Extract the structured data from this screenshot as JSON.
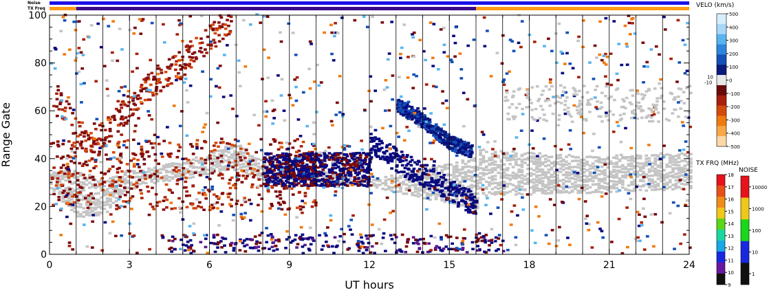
{
  "chart_data": {
    "type": "heatmap",
    "title": "",
    "xlabel": "UT hours",
    "ylabel": "Range Gate",
    "xlim": [
      0,
      24
    ],
    "ylim": [
      0,
      100
    ],
    "x_ticks": [
      "0",
      "3",
      "6",
      "9",
      "12",
      "15",
      "18",
      "21",
      "24"
    ],
    "y_ticks": [
      "0",
      "20",
      "40",
      "60",
      "80",
      "100"
    ],
    "status_bars": {
      "noise_label": "Noise",
      "txfreq_label": "TX Freq",
      "noise_color": "#1a10e8",
      "txfreq_segments": [
        {
          "start": 0,
          "end": 1,
          "color": "#ff9a1a"
        },
        {
          "start": 1,
          "end": 16,
          "color": "#3a0a8c"
        },
        {
          "start": 16,
          "end": 24,
          "color": "#ff9a1a"
        }
      ]
    },
    "velocity_scale": {
      "title": "VELO (km/s)",
      "labels": [
        "500",
        "400",
        "300",
        "200",
        "100",
        "0",
        "-100",
        "-200",
        "-300",
        "-400",
        "-500"
      ],
      "side_labels": [
        "10",
        "-10"
      ],
      "colors": [
        "#d8eefc",
        "#a8d8f8",
        "#58b4f0",
        "#2c86dc",
        "#1450b8",
        "#0a1a7a",
        "#e8e8e8",
        "#6a0a0a",
        "#a8200c",
        "#d44a0c",
        "#f07a10",
        "#f8a848",
        "#fcd8a8"
      ]
    },
    "txfreq_scale": {
      "title": "TX FRQ (MHz)",
      "labels": [
        "18",
        "17",
        "16",
        "15",
        "14",
        "13",
        "12",
        "11",
        "10",
        "9"
      ],
      "colors": [
        "#e8121a",
        "#e8501a",
        "#f08c18",
        "#f0c818",
        "#58d818",
        "#18d8a0",
        "#18a8e8",
        "#1828e0",
        "#6818a0",
        "#101010"
      ]
    },
    "noise_scale": {
      "title": "NOISE",
      "labels": [
        "10000",
        "1000",
        "100",
        "10",
        "1"
      ],
      "colors": [
        "#e8121a",
        "#f0c818",
        "#18d818",
        "#1828e0",
        "#101010"
      ]
    },
    "series": [
      {
        "name": "ground scatter",
        "color": "#c4c4c4",
        "band": [
          [
            0,
            34,
            27
          ],
          [
            1,
            34,
            15
          ],
          [
            2,
            30,
            16
          ],
          [
            3,
            34,
            28
          ],
          [
            5,
            38,
            31
          ],
          [
            7,
            46,
            35
          ],
          [
            8,
            38,
            30
          ],
          [
            12,
            30,
            28
          ],
          [
            16,
            40,
            18
          ],
          [
            16,
            43,
            24
          ],
          [
            20,
            40,
            25
          ],
          [
            24,
            42,
            27
          ]
        ]
      },
      {
        "name": "negative velocity",
        "color": "#7a0808",
        "traces": [
          [
            0.2,
            65
          ],
          [
            1.5,
            45
          ],
          [
            2.5,
            55
          ],
          [
            3.2,
            65
          ],
          [
            4,
            73
          ],
          [
            5,
            80
          ],
          [
            6,
            90
          ],
          [
            6.8,
            99
          ]
        ]
      },
      {
        "name": "positive velocity",
        "color": "#0a0a80",
        "traces": [
          [
            13,
            62
          ],
          [
            14,
            55
          ],
          [
            15,
            46
          ],
          [
            15.8,
            43
          ]
        ]
      }
    ]
  }
}
